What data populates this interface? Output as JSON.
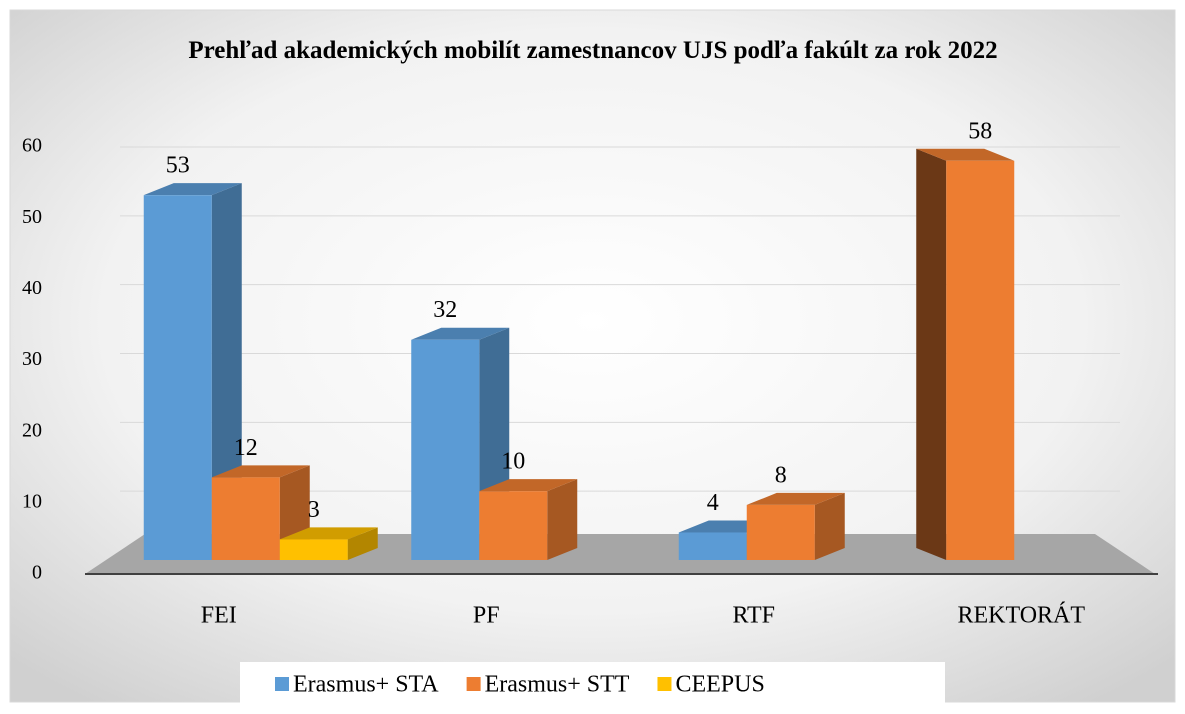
{
  "chart_data": {
    "type": "bar3d",
    "title": "Prehľad akademických mobilít zamestnancov UJS podľa fakúlt za rok 2022",
    "categories": [
      "FEI",
      "PF",
      "RTF",
      "REKTORÁT"
    ],
    "series": [
      {
        "name": "Erasmus+ STA",
        "color": "#5b9bd5",
        "values": [
          53,
          32,
          4,
          null
        ]
      },
      {
        "name": "Erasmus+ STT",
        "color": "#ed7d31",
        "values": [
          12,
          10,
          8,
          58
        ]
      },
      {
        "name": "CEEPUS",
        "color": "#ffc000",
        "values": [
          3,
          null,
          null,
          null
        ]
      }
    ],
    "ylim": [
      0,
      60
    ],
    "yticks": [
      0,
      10,
      20,
      30,
      40,
      50,
      60
    ],
    "grid": true,
    "legend": "bottom"
  }
}
